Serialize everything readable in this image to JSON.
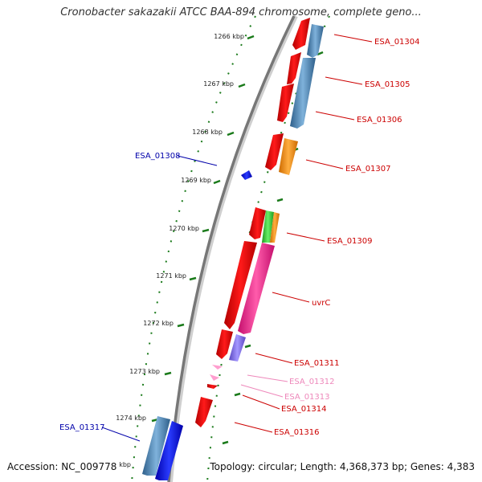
{
  "title": "Cronobacter sakazakii ATCC BAA-894 chromosome, complete geno...",
  "accession": "Accession: NC_009778",
  "topology": "Topology: circular; Length: 4,368,373 bp; Genes: 4,383",
  "ticks": [
    "1266 kbp",
    "1267 kbp",
    "1268 kbp",
    "1269 kbp",
    "1270 kbp",
    "1271 kbp",
    "1272 kbp",
    "1273 kbp",
    "1274 kbp",
    "kbp"
  ],
  "gene_labels": [
    {
      "text": "ESA_01304",
      "color": "#cc0000"
    },
    {
      "text": "ESA_01305",
      "color": "#cc0000"
    },
    {
      "text": "ESA_01306",
      "color": "#cc0000"
    },
    {
      "text": "ESA_01307",
      "color": "#cc0000"
    },
    {
      "text": "ESA_01308",
      "color": "#0000aa"
    },
    {
      "text": "ESA_01309",
      "color": "#cc0000"
    },
    {
      "text": "uvrC",
      "color": "#cc0000"
    },
    {
      "text": "ESA_01311",
      "color": "#cc0000"
    },
    {
      "text": "ESA_01312",
      "color": "#ee88bb"
    },
    {
      "text": "ESA_01313",
      "color": "#ee88bb"
    },
    {
      "text": "ESA_01314",
      "color": "#cc0000"
    },
    {
      "text": "ESA_01316",
      "color": "#cc0000"
    },
    {
      "text": "ESA_01317",
      "color": "#0000aa"
    }
  ],
  "colors": {
    "forward_cds": "#ee0000",
    "reverse_cds_blue": "#4682b4",
    "orange": "#ff8c00",
    "green": "#33cc33",
    "pink": "#ff1493",
    "purple": "#7b68ee",
    "backbone": "#777777",
    "tick": "#1a7a1a"
  }
}
